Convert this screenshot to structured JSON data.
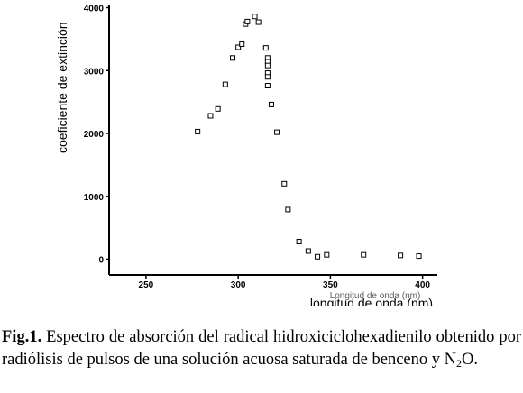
{
  "chart_data": {
    "type": "scatter",
    "title": "",
    "xlabel": "longitud de onda (nm)",
    "xlabel_ghost": "Longitud de onda (nm)",
    "ylabel": "coeficiente de extinción",
    "xlim": [
      230,
      408
    ],
    "ylim": [
      -250,
      4050
    ],
    "xticks": [
      250,
      300,
      350,
      400
    ],
    "yticks": [
      0,
      1000,
      2000,
      3000,
      4000
    ],
    "grid": false,
    "series": [
      {
        "marker": "open-square",
        "x": [
          278,
          285,
          289,
          293,
          297,
          300,
          302,
          304,
          305,
          309,
          311,
          315,
          316,
          316,
          316,
          316,
          316,
          316,
          318,
          321,
          325,
          327,
          333,
          338,
          343,
          348,
          368,
          388,
          398
        ],
        "y": [
          2030,
          2280,
          2390,
          2780,
          3200,
          3370,
          3420,
          3740,
          3780,
          3860,
          3770,
          3360,
          3200,
          3140,
          3080,
          2960,
          2900,
          2760,
          2460,
          2020,
          1200,
          790,
          280,
          130,
          40,
          70,
          70,
          60,
          50
        ]
      }
    ]
  },
  "caption": {
    "label": "Fig.1.",
    "text_before_sub": " Espectro de absorción del radical hidroxiciclohexadienilo obtenido por radiólisis de pulsos de una solución acuosa saturada de benceno y N",
    "subscript": "2",
    "text_after_sub": "O."
  }
}
